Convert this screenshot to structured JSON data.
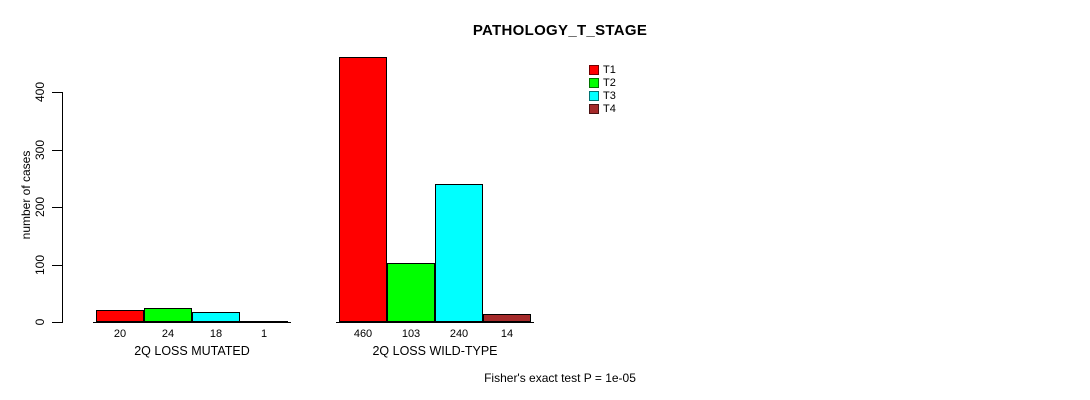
{
  "chart": {
    "title": "PATHOLOGY_T_STAGE",
    "ylabel": "number of cases",
    "footer": "Fisher's exact test P = 1e-05"
  },
  "chart_data": {
    "type": "bar",
    "title": "PATHOLOGY_T_STAGE",
    "xlabel": "",
    "ylabel": "number of cases",
    "ylim": [
      0,
      400
    ],
    "yticks": [
      0,
      100,
      200,
      300,
      400
    ],
    "grid": false,
    "legend_position": "top-right",
    "categories": [
      "2Q LOSS MUTATED",
      "2Q LOSS WILD-TYPE"
    ],
    "series": [
      {
        "name": "T1",
        "color": "#FF0000",
        "values": [
          20,
          460
        ]
      },
      {
        "name": "T2",
        "color": "#00FF00",
        "values": [
          24,
          103
        ]
      },
      {
        "name": "T3",
        "color": "#00FFFF",
        "values": [
          18,
          240
        ]
      },
      {
        "name": "T4",
        "color": "#A52A2A",
        "values": [
          1,
          14
        ]
      }
    ],
    "bar_value_labels": [
      [
        20,
        24,
        18,
        1
      ],
      [
        460,
        103,
        240,
        14
      ]
    ],
    "annotation": "Fisher's exact test P = 1e-05"
  }
}
